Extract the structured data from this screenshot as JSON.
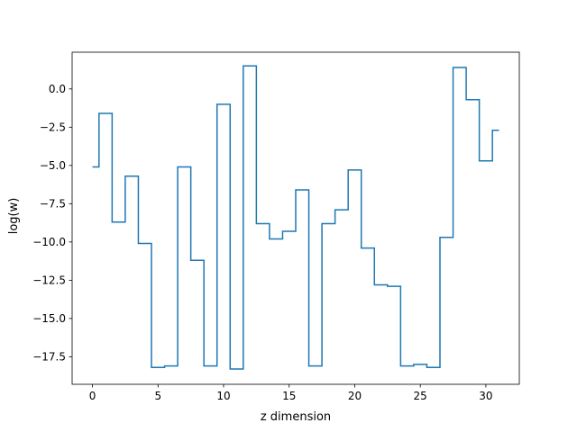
{
  "chart_data": {
    "type": "line",
    "drawstyle": "steps-mid",
    "title": "",
    "xlabel": "z dimension",
    "ylabel": "log(w)",
    "xlim": [
      -1.55,
      32.55
    ],
    "ylim": [
      -19.3,
      2.4
    ],
    "grid": false,
    "legend": "none",
    "line_color": "#1f77b4",
    "x_ticks": [
      0,
      5,
      10,
      15,
      20,
      25,
      30
    ],
    "x_tick_labels": [
      "0",
      "5",
      "10",
      "15",
      "20",
      "25",
      "30"
    ],
    "y_ticks": [
      0,
      -2.5,
      -5,
      -7.5,
      -10,
      -12.5,
      -15,
      -17.5
    ],
    "y_tick_labels": [
      "0.0",
      "−2.5",
      "−5.0",
      "−7.5",
      "−10.0",
      "−12.5",
      "−15.0",
      "−17.5"
    ],
    "series": [
      {
        "x": [
          0,
          1,
          2,
          3,
          4,
          5,
          6,
          7,
          8,
          9,
          10,
          11,
          12,
          13,
          14,
          15,
          16,
          17,
          18,
          19,
          20,
          21,
          22,
          23,
          24,
          25,
          26,
          27,
          28,
          29,
          30,
          31
        ],
        "values": [
          -5.1,
          -1.6,
          -8.7,
          -5.7,
          -10.1,
          -18.2,
          -18.1,
          -5.1,
          -11.2,
          -18.1,
          -1.0,
          -18.3,
          1.5,
          -8.8,
          -9.8,
          -9.3,
          -6.6,
          -18.1,
          -8.8,
          -7.9,
          -5.3,
          -10.4,
          -12.8,
          -12.9,
          -18.1,
          -18.0,
          -18.2,
          -9.7,
          1.4,
          -0.7,
          -4.7,
          -2.7
        ]
      }
    ]
  }
}
